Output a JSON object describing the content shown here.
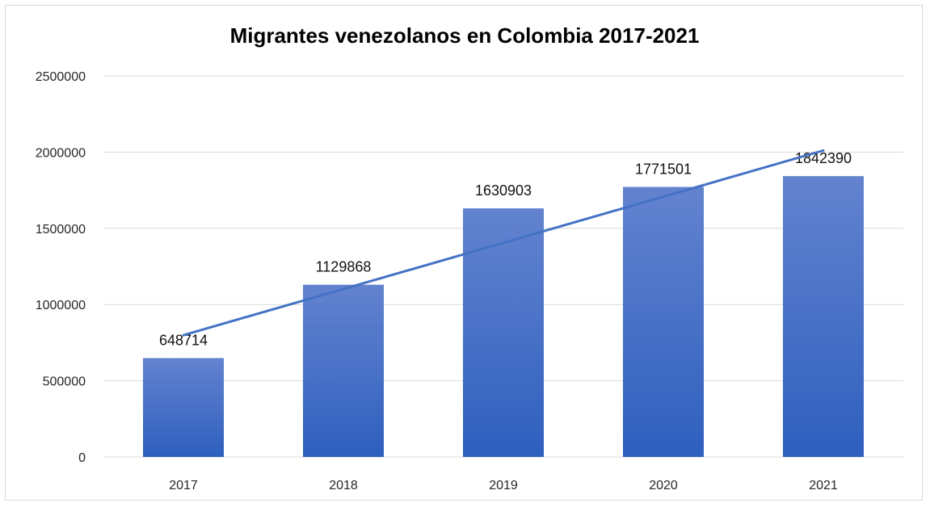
{
  "chart_data": {
    "type": "bar",
    "title": "Migrantes venezolanos en Colombia 2017-2021",
    "categories": [
      "2017",
      "2018",
      "2019",
      "2020",
      "2021"
    ],
    "series": [
      {
        "values": [
          648714,
          1129868,
          1630903,
          1771501,
          1842390
        ]
      }
    ],
    "trendline": {
      "type": "linear"
    },
    "ylim": [
      0,
      2500000
    ],
    "yticks": [
      "0",
      "500000",
      "1000000",
      "1500000",
      "2000000",
      "2500000"
    ],
    "xlabel": "",
    "ylabel": "",
    "grid": true,
    "legend": "none",
    "colors": {
      "bar_top": "#6383cf",
      "bar_bottom": "#2e5fbe",
      "trendline": "#4472c4",
      "grid": "#d9d9d9"
    }
  }
}
